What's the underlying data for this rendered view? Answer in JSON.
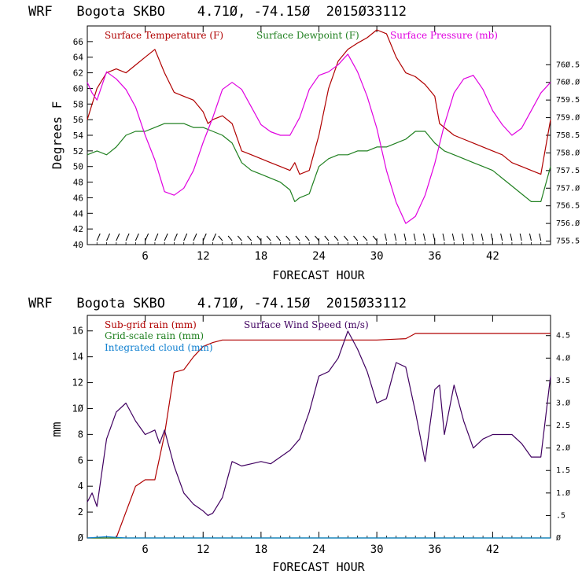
{
  "chart_data": [
    {
      "type": "line",
      "title": "WRF   Bogota SKBO    4.71Ø, -74.15Ø  2015Ø33112",
      "xlabel": "FORECAST HOUR",
      "ylabel": "Degrees F",
      "xlim": [
        0,
        48
      ],
      "ylim": [
        40,
        68
      ],
      "y2lim": [
        755.4,
        761.6
      ],
      "x_ticks": [
        6,
        12,
        18,
        24,
        30,
        36,
        42
      ],
      "x_tick_labels": [
        "6",
        "12",
        "18",
        "24",
        "30",
        "36",
        "42"
      ],
      "y_ticks": [
        40,
        42,
        44,
        46,
        48,
        50,
        52,
        54,
        56,
        58,
        60,
        62,
        64,
        66
      ],
      "y_tick_labels": [
        "40",
        "42",
        "44",
        "46",
        "48",
        "50",
        "52",
        "54",
        "56",
        "58",
        "60",
        "62",
        "64",
        "66"
      ],
      "y2_ticks": [
        755.5,
        756.0,
        756.5,
        757.0,
        757.5,
        758.0,
        758.5,
        759.0,
        759.5,
        760.0,
        760.5
      ],
      "y2_tick_labels": [
        "755.5",
        "756.Ø",
        "756.5",
        "757.Ø",
        "757.5",
        "758.Ø",
        "758.5",
        "759.Ø",
        "759.5",
        "76Ø.Ø",
        "76Ø.5"
      ],
      "legend_position": "top-left",
      "series": [
        {
          "name": "Surface Temperature (F)",
          "axis": "left",
          "color": "#b00000",
          "x": [
            0,
            1,
            2,
            3,
            4,
            5,
            6,
            7,
            8,
            9,
            10,
            11,
            12,
            12.5,
            13,
            14,
            15,
            16,
            17,
            18,
            19,
            20,
            21,
            21.5,
            22,
            23,
            24,
            25,
            26,
            27,
            28,
            29,
            30,
            31,
            32,
            33,
            34,
            35,
            36,
            36.5,
            37,
            38,
            39,
            40,
            41,
            42,
            43,
            44,
            45,
            46,
            47,
            48
          ],
          "values": [
            56,
            60,
            62,
            62.5,
            62,
            63,
            64,
            65,
            62,
            59.5,
            59,
            58.5,
            57,
            55.5,
            56,
            56.5,
            55.5,
            52,
            51.5,
            51,
            50.5,
            50,
            49.5,
            50.5,
            49,
            49.5,
            54,
            60,
            63.5,
            65,
            65.8,
            66.5,
            67.5,
            67,
            64,
            62,
            61.5,
            60.5,
            59,
            55.5,
            55,
            54,
            53.5,
            53,
            52.5,
            52,
            51.5,
            50.5,
            50,
            49.5,
            49,
            56
          ]
        },
        {
          "name": "Surface Dewpoint (F)",
          "axis": "left",
          "color": "#208020",
          "x": [
            0,
            1,
            2,
            3,
            4,
            5,
            6,
            7,
            8,
            9,
            10,
            11,
            12,
            13,
            14,
            15,
            16,
            17,
            18,
            19,
            20,
            21,
            21.5,
            22,
            23,
            24,
            25,
            26,
            27,
            28,
            29,
            30,
            31,
            32,
            33,
            34,
            35,
            36,
            37,
            38,
            39,
            40,
            41,
            42,
            43,
            44,
            45,
            46,
            47,
            48
          ],
          "values": [
            51.5,
            52,
            51.5,
            52.5,
            54,
            54.5,
            54.5,
            55,
            55.5,
            55.5,
            55.5,
            55,
            55,
            54.5,
            54,
            53,
            50.5,
            49.5,
            49,
            48.5,
            48,
            47,
            45.5,
            46,
            46.5,
            50,
            51,
            51.5,
            51.5,
            52,
            52,
            52.5,
            52.5,
            53,
            53.5,
            54.5,
            54.5,
            53,
            52,
            51.5,
            51,
            50.5,
            50,
            49.5,
            48.5,
            47.5,
            46.5,
            45.5,
            45.5,
            50
          ]
        },
        {
          "name": "Surface Pressure (mb)",
          "axis": "right",
          "color": "#e000e0",
          "x": [
            0,
            0.5,
            1,
            2,
            3,
            4,
            5,
            6,
            7,
            8,
            9,
            10,
            11,
            12,
            13,
            14,
            15,
            16,
            17,
            18,
            19,
            20,
            21,
            22,
            23,
            24,
            25,
            26,
            27,
            28,
            29,
            30,
            31,
            32,
            33,
            34,
            35,
            36,
            37,
            38,
            39,
            40,
            41,
            42,
            43,
            44,
            45,
            46,
            47,
            48
          ],
          "values": [
            760.0,
            759.7,
            759.5,
            760.3,
            760.1,
            759.8,
            759.3,
            758.5,
            757.8,
            756.9,
            756.8,
            757.0,
            757.5,
            758.3,
            759.0,
            759.8,
            760.0,
            759.8,
            759.3,
            758.8,
            758.6,
            758.5,
            758.5,
            759.0,
            759.8,
            760.2,
            760.3,
            760.5,
            760.8,
            760.3,
            759.6,
            758.7,
            757.5,
            756.6,
            756.0,
            756.2,
            756.8,
            757.7,
            758.8,
            759.7,
            760.1,
            760.2,
            759.8,
            759.2,
            758.8,
            758.5,
            758.7,
            759.2,
            759.7,
            760.0
          ]
        }
      ],
      "wind_barbs": "row of wind barbs along bottom of panel at each forecast hour"
    },
    {
      "type": "line",
      "title": "WRF   Bogota SKBO    4.71Ø, -74.15Ø  2015Ø33112",
      "xlabel": "FORECAST HOUR",
      "ylabel": "mm",
      "xlim": [
        0,
        48
      ],
      "ylim": [
        0,
        17.2
      ],
      "y2lim": [
        0,
        4.95
      ],
      "x_ticks": [
        6,
        12,
        18,
        24,
        30,
        36,
        42
      ],
      "x_tick_labels": [
        "6",
        "12",
        "18",
        "24",
        "30",
        "36",
        "42"
      ],
      "y_ticks": [
        0,
        2,
        4,
        6,
        8,
        10,
        12,
        14,
        16
      ],
      "y_tick_labels": [
        "Ø",
        "2",
        "4",
        "6",
        "8",
        "1Ø",
        "12",
        "14",
        "16"
      ],
      "y2_ticks": [
        0,
        0.5,
        1.0,
        1.5,
        2.0,
        2.5,
        3.0,
        3.5,
        4.0,
        4.5
      ],
      "y2_tick_labels": [
        "Ø",
        ".5",
        "1.Ø",
        "1.5",
        "2.Ø",
        "2.5",
        "3.Ø",
        "3.5",
        "4.Ø",
        "4.5"
      ],
      "legend_position": "top-left",
      "series": [
        {
          "name": "Sub-grid rain (mm)",
          "axis": "left",
          "color": "#b00000",
          "x": [
            0,
            3,
            4,
            5,
            6,
            7,
            8,
            9,
            10,
            11,
            12,
            13,
            14,
            16,
            20,
            24,
            30,
            33,
            34,
            40,
            48
          ],
          "values": [
            0,
            0,
            2,
            4,
            4.5,
            4.5,
            8,
            12.8,
            13,
            14,
            14.8,
            15.1,
            15.3,
            15.3,
            15.3,
            15.3,
            15.3,
            15.4,
            15.8,
            15.8,
            15.8
          ]
        },
        {
          "name": "Grid-scale rain (mm)",
          "axis": "left",
          "color": "#208020",
          "x": [
            0,
            48
          ],
          "values": [
            0,
            0
          ]
        },
        {
          "name": "Integrated cloud (mm)",
          "axis": "left",
          "color": "#1080d0",
          "x": [
            0,
            1,
            2,
            3,
            4,
            6,
            48
          ],
          "values": [
            0,
            0.05,
            0.1,
            0.05,
            0,
            0,
            0
          ]
        },
        {
          "name": "Surface Wind Speed (m/s)",
          "axis": "right",
          "color": "#400060",
          "x": [
            0,
            0.5,
            1,
            2,
            3,
            4,
            5,
            6,
            7,
            7.5,
            8,
            9,
            10,
            11,
            12,
            12.5,
            13,
            14,
            15,
            16,
            17,
            18,
            19,
            20,
            21,
            22,
            23,
            24,
            25,
            26,
            27,
            28,
            29,
            30,
            31,
            32,
            33,
            34,
            35,
            35.5,
            36,
            36.5,
            37,
            38,
            39,
            40,
            41,
            42,
            43,
            44,
            45,
            46,
            47,
            48
          ],
          "values": [
            0.8,
            1.0,
            0.7,
            2.2,
            2.8,
            3.0,
            2.6,
            2.3,
            2.4,
            2.1,
            2.4,
            1.6,
            1.0,
            0.75,
            0.6,
            0.5,
            0.55,
            0.9,
            1.7,
            1.6,
            1.65,
            1.7,
            1.65,
            1.8,
            1.95,
            2.2,
            2.8,
            3.6,
            3.7,
            4.0,
            4.6,
            4.2,
            3.7,
            3.0,
            3.1,
            3.9,
            3.8,
            2.8,
            1.7,
            2.5,
            3.3,
            3.4,
            2.3,
            3.4,
            2.6,
            2.0,
            2.2,
            2.3,
            2.3,
            2.3,
            2.1,
            1.8,
            1.8,
            3.6
          ]
        }
      ]
    }
  ]
}
